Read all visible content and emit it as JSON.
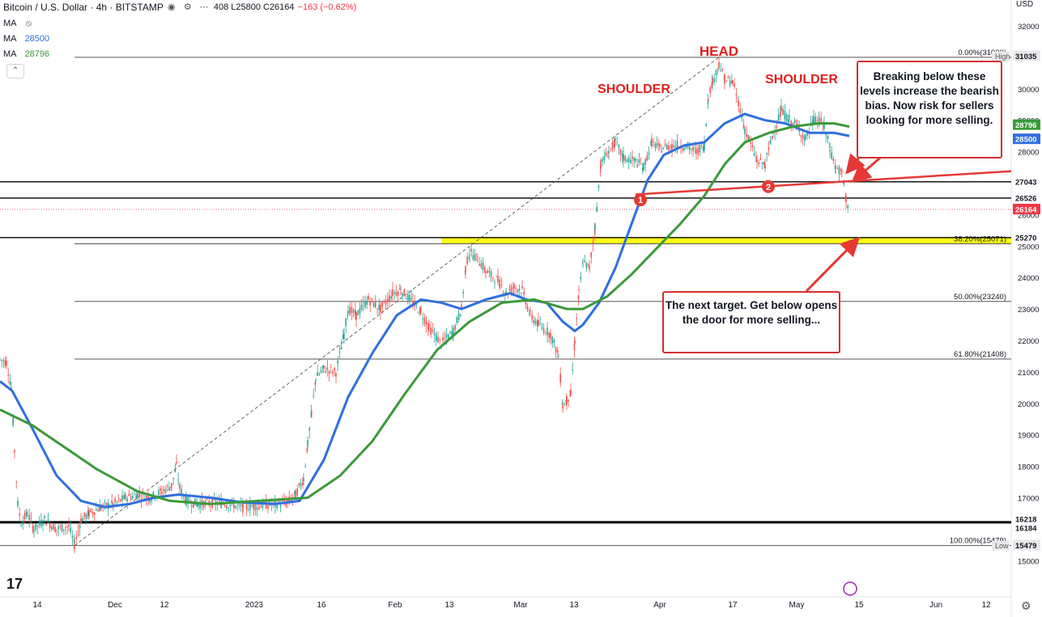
{
  "header": {
    "symbol": "Bitcoin / U.S. Dollar · 4h · BITSTAMP",
    "ohlc_text": "408  L25800  C26164",
    "change_text": "−163 (−0.62%)"
  },
  "indicators": [
    {
      "label": "MA",
      "value": "",
      "color": "#7b7b7b"
    },
    {
      "label": "MA",
      "value": "28500",
      "color": "#2f6fe0"
    },
    {
      "label": "MA",
      "value": "28796",
      "color": "#3a9a3a"
    }
  ],
  "axis_unit": "USD",
  "tv_logo": "17",
  "chart_data": {
    "type": "candlestick",
    "title": "Bitcoin / U.S. Dollar · 4h · BITSTAMP",
    "ylim": [
      14500,
      32000
    ],
    "y_ticks": [
      15000,
      16000,
      17000,
      18000,
      19000,
      20000,
      21000,
      22000,
      23000,
      24000,
      25000,
      26000,
      27000,
      28000,
      29000,
      30000,
      31000,
      32000
    ],
    "x_tick_labels": [
      "14",
      "Dec",
      "12",
      "2023",
      "16",
      "Feb",
      "13",
      "Mar",
      "13",
      "Apr",
      "17",
      "May",
      "15",
      "Jun",
      "12"
    ],
    "price_path": [
      [
        0,
        21400
      ],
      [
        8,
        21300
      ],
      [
        14,
        20500
      ],
      [
        18,
        18500
      ],
      [
        22,
        16800
      ],
      [
        26,
        16200
      ],
      [
        34,
        16500
      ],
      [
        42,
        16000
      ],
      [
        55,
        16300
      ],
      [
        70,
        16000
      ],
      [
        85,
        16100
      ],
      [
        92,
        15500
      ],
      [
        100,
        16300
      ],
      [
        110,
        16500
      ],
      [
        125,
        16700
      ],
      [
        140,
        16800
      ],
      [
        155,
        17000
      ],
      [
        170,
        17100
      ],
      [
        185,
        17000
      ],
      [
        200,
        17200
      ],
      [
        212,
        17400
      ],
      [
        218,
        18000
      ],
      [
        222,
        17300
      ],
      [
        230,
        16900
      ],
      [
        245,
        16800
      ],
      [
        260,
        16850
      ],
      [
        280,
        16800
      ],
      [
        300,
        16700
      ],
      [
        320,
        16750
      ],
      [
        340,
        16800
      ],
      [
        355,
        16850
      ],
      [
        365,
        17100
      ],
      [
        375,
        17600
      ],
      [
        380,
        18700
      ],
      [
        385,
        19700
      ],
      [
        390,
        20800
      ],
      [
        400,
        21100
      ],
      [
        415,
        21000
      ],
      [
        425,
        22200
      ],
      [
        430,
        23000
      ],
      [
        440,
        22800
      ],
      [
        455,
        23300
      ],
      [
        470,
        23000
      ],
      [
        485,
        23500
      ],
      [
        495,
        23600
      ],
      [
        510,
        23200
      ],
      [
        520,
        22900
      ],
      [
        530,
        22400
      ],
      [
        545,
        21900
      ],
      [
        560,
        22300
      ],
      [
        570,
        23000
      ],
      [
        575,
        24300
      ],
      [
        580,
        24800
      ],
      [
        590,
        24600
      ],
      [
        600,
        24200
      ],
      [
        615,
        23900
      ],
      [
        625,
        23500
      ],
      [
        635,
        23700
      ],
      [
        645,
        23600
      ],
      [
        655,
        22800
      ],
      [
        665,
        22500
      ],
      [
        680,
        22200
      ],
      [
        690,
        21500
      ],
      [
        695,
        19900
      ],
      [
        700,
        20100
      ],
      [
        705,
        20300
      ],
      [
        710,
        22000
      ],
      [
        715,
        23500
      ],
      [
        720,
        24500
      ],
      [
        728,
        24300
      ],
      [
        735,
        25600
      ],
      [
        742,
        27600
      ],
      [
        752,
        28000
      ],
      [
        760,
        28300
      ],
      [
        770,
        27800
      ],
      [
        785,
        27700
      ],
      [
        795,
        27500
      ],
      [
        805,
        28300
      ],
      [
        815,
        28100
      ],
      [
        830,
        28200
      ],
      [
        845,
        28200
      ],
      [
        860,
        28000
      ],
      [
        870,
        28200
      ],
      [
        875,
        29800
      ],
      [
        880,
        30200
      ],
      [
        888,
        30800
      ],
      [
        895,
        30300
      ],
      [
        905,
        30200
      ],
      [
        912,
        29600
      ],
      [
        920,
        28700
      ],
      [
        925,
        28400
      ],
      [
        935,
        27700
      ],
      [
        945,
        27600
      ],
      [
        955,
        28600
      ],
      [
        965,
        29300
      ],
      [
        975,
        29000
      ],
      [
        985,
        28800
      ],
      [
        995,
        28400
      ],
      [
        1005,
        29000
      ],
      [
        1012,
        29000
      ],
      [
        1018,
        28800
      ],
      [
        1025,
        28100
      ],
      [
        1032,
        27500
      ],
      [
        1040,
        27300
      ],
      [
        1045,
        26500
      ],
      [
        1049,
        26164
      ]
    ],
    "series": [
      {
        "name": "MA",
        "color": "#2f6fe0",
        "value": 28500,
        "points": [
          [
            0,
            20700
          ],
          [
            15,
            20400
          ],
          [
            40,
            19200
          ],
          [
            70,
            17700
          ],
          [
            100,
            16900
          ],
          [
            130,
            16700
          ],
          [
            160,
            16800
          ],
          [
            190,
            17000
          ],
          [
            220,
            17100
          ],
          [
            260,
            17000
          ],
          [
            300,
            16850
          ],
          [
            340,
            16800
          ],
          [
            370,
            16900
          ],
          [
            400,
            18200
          ],
          [
            430,
            20200
          ],
          [
            460,
            21600
          ],
          [
            490,
            22800
          ],
          [
            520,
            23300
          ],
          [
            545,
            23200
          ],
          [
            570,
            23000
          ],
          [
            600,
            23300
          ],
          [
            630,
            23500
          ],
          [
            650,
            23300
          ],
          [
            675,
            23200
          ],
          [
            695,
            22600
          ],
          [
            710,
            22300
          ],
          [
            720,
            22500
          ],
          [
            740,
            23200
          ],
          [
            760,
            24300
          ],
          [
            780,
            25700
          ],
          [
            800,
            27100
          ],
          [
            820,
            27900
          ],
          [
            845,
            28200
          ],
          [
            870,
            28300
          ],
          [
            895,
            28900
          ],
          [
            920,
            29200
          ],
          [
            945,
            29000
          ],
          [
            970,
            28900
          ],
          [
            1000,
            28600
          ],
          [
            1030,
            28600
          ],
          [
            1049,
            28500
          ]
        ]
      },
      {
        "name": "MA",
        "color": "#3a9a3a",
        "value": 28796,
        "points": [
          [
            0,
            19800
          ],
          [
            40,
            19300
          ],
          [
            80,
            18600
          ],
          [
            120,
            17900
          ],
          [
            170,
            17200
          ],
          [
            210,
            16900
          ],
          [
            260,
            16800
          ],
          [
            320,
            16900
          ],
          [
            380,
            17000
          ],
          [
            420,
            17700
          ],
          [
            460,
            18800
          ],
          [
            500,
            20300
          ],
          [
            540,
            21700
          ],
          [
            580,
            22600
          ],
          [
            620,
            23200
          ],
          [
            660,
            23300
          ],
          [
            700,
            23000
          ],
          [
            720,
            23000
          ],
          [
            750,
            23400
          ],
          [
            780,
            24100
          ],
          [
            810,
            24900
          ],
          [
            840,
            25700
          ],
          [
            870,
            26600
          ],
          [
            895,
            27600
          ],
          [
            920,
            28300
          ],
          [
            950,
            28600
          ],
          [
            980,
            28800
          ],
          [
            1010,
            28900
          ],
          [
            1030,
            28900
          ],
          [
            1049,
            28796
          ]
        ]
      }
    ],
    "horizontal_levels": [
      {
        "value": 27043,
        "label": "27043"
      },
      {
        "value": 26526,
        "label": "26526"
      },
      {
        "value": 25270,
        "label": "25270"
      },
      {
        "value": 16218,
        "label": "16218"
      },
      {
        "value": 16184,
        "label": "16184"
      }
    ],
    "fibonacci": [
      {
        "ratio": "0.00%",
        "value": 31000,
        "label": "0.00%(31000)"
      },
      {
        "ratio": "38.20%",
        "value": 25071,
        "label": "38.20%(25071)"
      },
      {
        "ratio": "50.00%",
        "value": 23240,
        "label": "50.00%(23240)"
      },
      {
        "ratio": "61.80%",
        "value": 21408,
        "label": "61.80%(21408)"
      },
      {
        "ratio": "100.00%",
        "value": 15479,
        "label": "100.00%(15479)"
      }
    ],
    "price_labels": [
      {
        "value": 31035,
        "text": "31035",
        "tag": "High",
        "color": "#e8e8ea",
        "text_color": "#131722"
      },
      {
        "value": 28796,
        "text": "28796",
        "color": "#3a9a3a",
        "text_color": "#ffffff"
      },
      {
        "value": 28500,
        "text": "28500",
        "color": "#2f6fe0",
        "text_color": "#ffffff"
      },
      {
        "value": 27043,
        "text": "27043",
        "color": "#ffffff",
        "text_color": "#131722"
      },
      {
        "value": 26526,
        "text": "26526",
        "color": "#ffffff",
        "text_color": "#131722"
      },
      {
        "value": 26164,
        "text": "26164",
        "color": "#f23645",
        "text_color": "#ffffff"
      },
      {
        "value": 25270,
        "text": "25270",
        "color": "#ffffff",
        "text_color": "#131722"
      },
      {
        "value": 16218,
        "text": "16218",
        "color": "#ffffff",
        "text_color": "#131722"
      },
      {
        "value": 16184,
        "text": "16184",
        "color": "#ffffff",
        "text_color": "#131722"
      },
      {
        "value": 15479,
        "text": "15479",
        "tag": "Low",
        "color": "#e8e8ea",
        "text_color": "#131722"
      }
    ],
    "annotations": {
      "head": "HEAD",
      "shoulder_left": "SHOULDER",
      "shoulder_right": "SHOULDER",
      "marker_1": "1",
      "marker_2": "2",
      "callout_top": "Breaking below these levels increase the bearish bias. Now risk for sellers looking for more selling.",
      "callout_bottom": "The next target. Get below opens the door for more selling..."
    },
    "annotation_color": "#e02020",
    "highlight_zone": {
      "from": 25071,
      "to": 25270,
      "color": "#ffff00"
    }
  }
}
